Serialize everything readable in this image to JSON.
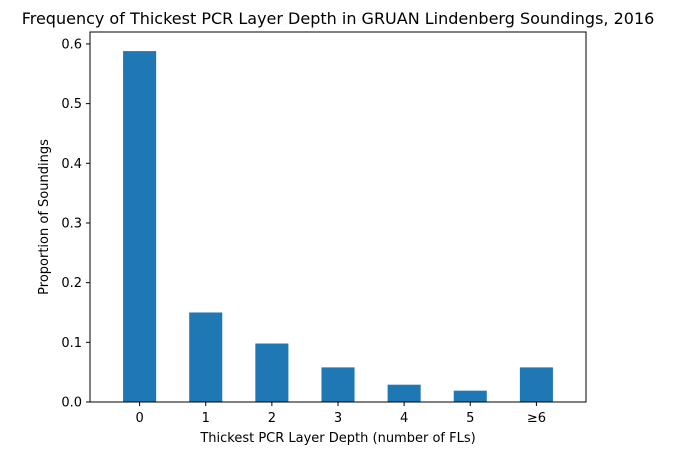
{
  "chart_data": {
    "type": "bar",
    "title": "Frequency of Thickest PCR Layer Depth in GRUAN Lindenberg Soundings, 2016",
    "xlabel": "Thickest PCR Layer Depth (number of FLs)",
    "ylabel": "Proportion of Soundings",
    "categories": [
      "0",
      "1",
      "2",
      "3",
      "4",
      "5",
      "≥6"
    ],
    "values": [
      0.588,
      0.15,
      0.098,
      0.058,
      0.029,
      0.019,
      0.058
    ],
    "ylim": [
      0,
      0.62
    ],
    "yticks": [
      0.0,
      0.1,
      0.2,
      0.3,
      0.4,
      0.5,
      0.6
    ],
    "ytick_labels": [
      "0.0",
      "0.1",
      "0.2",
      "0.3",
      "0.4",
      "0.5",
      "0.6"
    ],
    "grid": false,
    "legend": null,
    "bar_color": "#1f77b4"
  }
}
